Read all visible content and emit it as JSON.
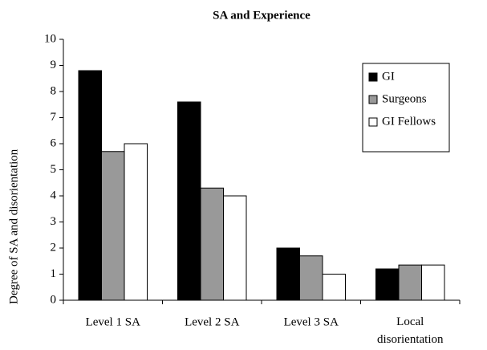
{
  "chart_data": {
    "type": "bar",
    "title": "SA and Experience",
    "y_label": "Degree of SA and disorientation",
    "categories": [
      "Level 1 SA",
      "Level 2 SA",
      "Level 3 SA",
      "Local disorientation"
    ],
    "series": [
      {
        "name": "GI",
        "color": "#000000",
        "values": [
          8.8,
          7.6,
          2.0,
          1.2
        ]
      },
      {
        "name": "Surgeons",
        "color": "#999999",
        "values": [
          5.7,
          4.3,
          1.7,
          1.35
        ]
      },
      {
        "name": "GI Fellows",
        "color": "#ffffff",
        "values": [
          6.0,
          4.0,
          1.0,
          1.35
        ]
      }
    ],
    "ylim": [
      0,
      10
    ],
    "yticks": [
      0,
      1,
      2,
      3,
      4,
      5,
      6,
      7,
      8,
      9,
      10
    ],
    "grid": false,
    "legend": "upper right"
  }
}
